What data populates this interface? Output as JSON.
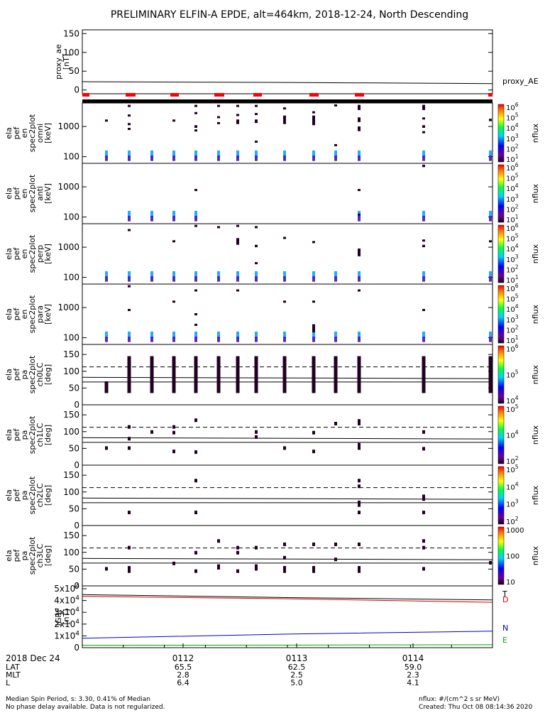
{
  "title": "PRELIMINARY ELFIN-A EPDE, alt=464km, 2018-12-24, North Descending",
  "footer": {
    "left_line1": "Median Spin Period, s: 3.30, 0.41% of Median",
    "left_line2": "No phase delay available. Data is not regularized.",
    "right_line1": "nflux: #/(cm^2 s sr MeV)",
    "right_line2": "Created: Thu Oct 08 08:14:36 2020"
  },
  "time_axis": {
    "date_label": "2018 Dec 24",
    "row_labels": [
      "LAT",
      "MLT",
      "L"
    ],
    "ticks": [
      {
        "time": "0112",
        "LAT": "65.5",
        "MLT": "2.8",
        "L": "6.4"
      },
      {
        "time": "0113",
        "LAT": "62.5",
        "MLT": "2.5",
        "L": "5.0"
      },
      {
        "time": "0114",
        "LAT": "59.0",
        "MLT": "2.3",
        "L": "4.1"
      }
    ]
  },
  "colors": {
    "igrf_D": "#cc0000",
    "igrf_N": "#0000cc",
    "igrf_E": "#00aa00",
    "igrf_T": "#000000",
    "phase_bar": "#ff0000",
    "spec_top": "#22aaff",
    "spec_mid": "#2233ee",
    "spec_low": "#6a2a88",
    "spec_dark": "#220022"
  },
  "chart_data": [
    {
      "type": "line",
      "id": "proxy_ae",
      "ylabel_lines": [
        "proxy_ae",
        "[nT]"
      ],
      "side_label": "proxy_AE",
      "ylim": [
        -10,
        160
      ],
      "yticks": [
        0,
        50,
        100,
        150
      ],
      "x": [
        0,
        0.5,
        1.0
      ],
      "series": [
        {
          "name": "proxy_AE",
          "values": [
            22,
            20,
            17
          ]
        }
      ]
    },
    {
      "type": "heatmap",
      "id": "en_omni",
      "ylabel_lines": [
        "ela",
        "pef",
        "en",
        "spec2plot",
        "omni",
        "[keV]"
      ],
      "yscale": "log",
      "yticks": [
        100,
        1000
      ],
      "cbar": {
        "label": "nflux",
        "ticks": [
          "10^1",
          "10^2",
          "10^3",
          "10^4",
          "10^5",
          "10^6"
        ]
      }
    },
    {
      "type": "heatmap",
      "id": "en_anti",
      "ylabel_lines": [
        "ela",
        "pef",
        "en",
        "spec2plot",
        "anti",
        "[keV]"
      ],
      "yscale": "log",
      "yticks": [
        100,
        1000
      ],
      "cbar": {
        "label": "nflux",
        "ticks": [
          "10^1",
          "10^2",
          "10^3",
          "10^4",
          "10^5",
          "10^6"
        ]
      }
    },
    {
      "type": "heatmap",
      "id": "en_perp",
      "ylabel_lines": [
        "ela",
        "pef",
        "en",
        "spec2plot",
        "perp",
        "[keV]"
      ],
      "yscale": "log",
      "yticks": [
        100,
        1000
      ],
      "cbar": {
        "label": "nflux",
        "ticks": [
          "10^1",
          "10^2",
          "10^3",
          "10^4",
          "10^5",
          "10^6"
        ]
      }
    },
    {
      "type": "heatmap",
      "id": "en_para",
      "ylabel_lines": [
        "ela",
        "pef",
        "en",
        "spec2plot",
        "para",
        "[keV]"
      ],
      "yscale": "log",
      "yticks": [
        100,
        1000
      ],
      "cbar": {
        "label": "nflux",
        "ticks": [
          "10^1",
          "10^2",
          "10^3",
          "10^4",
          "10^5",
          "10^6"
        ]
      }
    },
    {
      "type": "heatmap",
      "id": "pa_ch0LC",
      "ylabel_lines": [
        "ela",
        "pef",
        "pa",
        "spec2plot",
        "ch0LC",
        "[deg]"
      ],
      "ylim": [
        0,
        180
      ],
      "yticks": [
        0,
        50,
        100,
        150
      ],
      "cbar": {
        "label": "nflux",
        "ticks": [
          "10^4",
          "10^5",
          "10^6"
        ]
      }
    },
    {
      "type": "heatmap",
      "id": "pa_ch1LC",
      "ylabel_lines": [
        "ela",
        "pef",
        "pa",
        "spec2plot",
        "ch1LC",
        "[deg]"
      ],
      "ylim": [
        0,
        180
      ],
      "yticks": [
        0,
        50,
        100,
        150
      ],
      "cbar": {
        "label": "nflux",
        "ticks": [
          "10^2",
          "10^4",
          "10^5"
        ]
      }
    },
    {
      "type": "heatmap",
      "id": "pa_ch2LC",
      "ylabel_lines": [
        "ela",
        "pef",
        "pa",
        "spec2plot",
        "ch2LC",
        "[deg]"
      ],
      "ylim": [
        0,
        180
      ],
      "yticks": [
        0,
        50,
        100,
        150
      ],
      "cbar": {
        "label": "nflux",
        "ticks": [
          "10^2",
          "10^3",
          "10^4",
          "10^5"
        ]
      }
    },
    {
      "type": "heatmap",
      "id": "pa_ch3LC",
      "ylabel_lines": [
        "ela",
        "pef",
        "pa",
        "spec2plot",
        "ch3LC",
        "[deg]"
      ],
      "ylim": [
        0,
        180
      ],
      "yticks": [
        0,
        50,
        100,
        150
      ],
      "cbar": {
        "label": "nflux",
        "ticks": [
          "10",
          "100",
          "1000"
        ]
      }
    },
    {
      "type": "line",
      "id": "igrf",
      "ylabel_lines": [
        "IGRF",
        "[nT]"
      ],
      "ylim": [
        0,
        50000
      ],
      "ytick_labels": [
        "0",
        "1x10^4",
        "2x10^4",
        "3x10^4",
        "4x10^4",
        "5x10^4"
      ],
      "x": [
        0,
        0.5,
        1.0
      ],
      "series": [
        {
          "name": "T",
          "values": [
            45000,
            42500,
            40500
          ]
        },
        {
          "name": "D",
          "values": [
            43500,
            41500,
            38500
          ]
        },
        {
          "name": "N",
          "values": [
            8000,
            11500,
            14000
          ]
        },
        {
          "name": "E",
          "values": [
            2000,
            2200,
            2500
          ]
        }
      ]
    }
  ]
}
